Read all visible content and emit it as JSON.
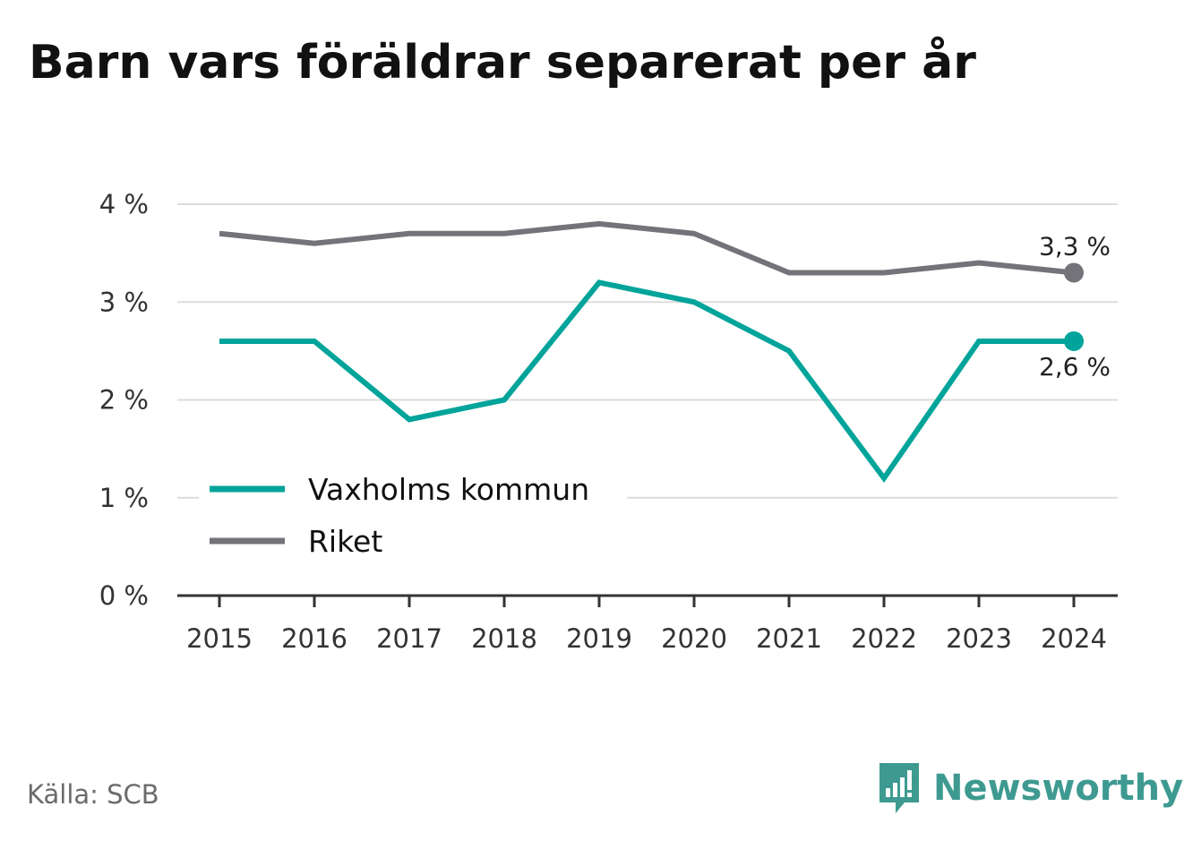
{
  "title": "Barn vars föräldrar separerat per år",
  "source": "Källa: SCB",
  "brand": {
    "name": "Newsworthy",
    "icon": "newsworthy-logo-icon",
    "color": "#3e9a91"
  },
  "chart_data": {
    "type": "line",
    "title": "Barn vars föräldrar separerat per år",
    "xlabel": "",
    "ylabel": "",
    "x": [
      "2015",
      "2016",
      "2017",
      "2018",
      "2019",
      "2020",
      "2021",
      "2022",
      "2023",
      "2024"
    ],
    "ylim": [
      0,
      4
    ],
    "yticks": [
      0,
      1,
      2,
      3,
      4
    ],
    "ytick_labels": [
      "0 %",
      "1 %",
      "2 %",
      "3 %",
      "4 %"
    ],
    "grid": true,
    "legend_position": "bottom-left",
    "series": [
      {
        "name": "Vaxholms kommun",
        "color": "#00a49a",
        "values": [
          2.6,
          2.6,
          1.8,
          2.0,
          3.2,
          3.0,
          2.5,
          1.2,
          2.6,
          2.6
        ],
        "end_label": "2,6 %"
      },
      {
        "name": "Riket",
        "color": "#737379",
        "values": [
          3.7,
          3.6,
          3.7,
          3.7,
          3.8,
          3.7,
          3.3,
          3.3,
          3.4,
          3.3
        ],
        "end_label": "3,3 %"
      }
    ]
  }
}
